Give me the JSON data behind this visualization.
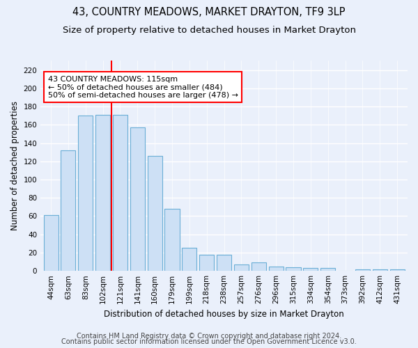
{
  "title": "43, COUNTRY MEADOWS, MARKET DRAYTON, TF9 3LP",
  "subtitle": "Size of property relative to detached houses in Market Drayton",
  "xlabel": "Distribution of detached houses by size in Market Drayton",
  "ylabel": "Number of detached properties",
  "categories": [
    "44sqm",
    "63sqm",
    "83sqm",
    "102sqm",
    "121sqm",
    "141sqm",
    "160sqm",
    "179sqm",
    "199sqm",
    "218sqm",
    "238sqm",
    "257sqm",
    "276sqm",
    "296sqm",
    "315sqm",
    "334sqm",
    "354sqm",
    "373sqm",
    "392sqm",
    "412sqm",
    "431sqm"
  ],
  "values": [
    61,
    132,
    170,
    171,
    171,
    157,
    126,
    68,
    25,
    18,
    18,
    7,
    9,
    5,
    4,
    3,
    3,
    0,
    2,
    2,
    2
  ],
  "bar_color": "#cde0f5",
  "bar_edge_color": "#6aaed6",
  "ref_line_label": "43 COUNTRY MEADOWS: 115sqm",
  "annotation_line1": "← 50% of detached houses are smaller (484)",
  "annotation_line2": "50% of semi-detached houses are larger (478) →",
  "ref_bar_index": 4,
  "ylim": [
    0,
    230
  ],
  "yticks": [
    0,
    20,
    40,
    60,
    80,
    100,
    120,
    140,
    160,
    180,
    200,
    220
  ],
  "footer1": "Contains HM Land Registry data © Crown copyright and database right 2024.",
  "footer2": "Contains public sector information licensed under the Open Government Licence v3.0.",
  "background_color": "#eaf0fb",
  "plot_bg_color": "#eaf0fb",
  "grid_color": "#ffffff",
  "title_fontsize": 10.5,
  "subtitle_fontsize": 9.5,
  "axis_label_fontsize": 8.5,
  "tick_fontsize": 7.5,
  "annotation_fontsize": 8,
  "footer_fontsize": 7
}
